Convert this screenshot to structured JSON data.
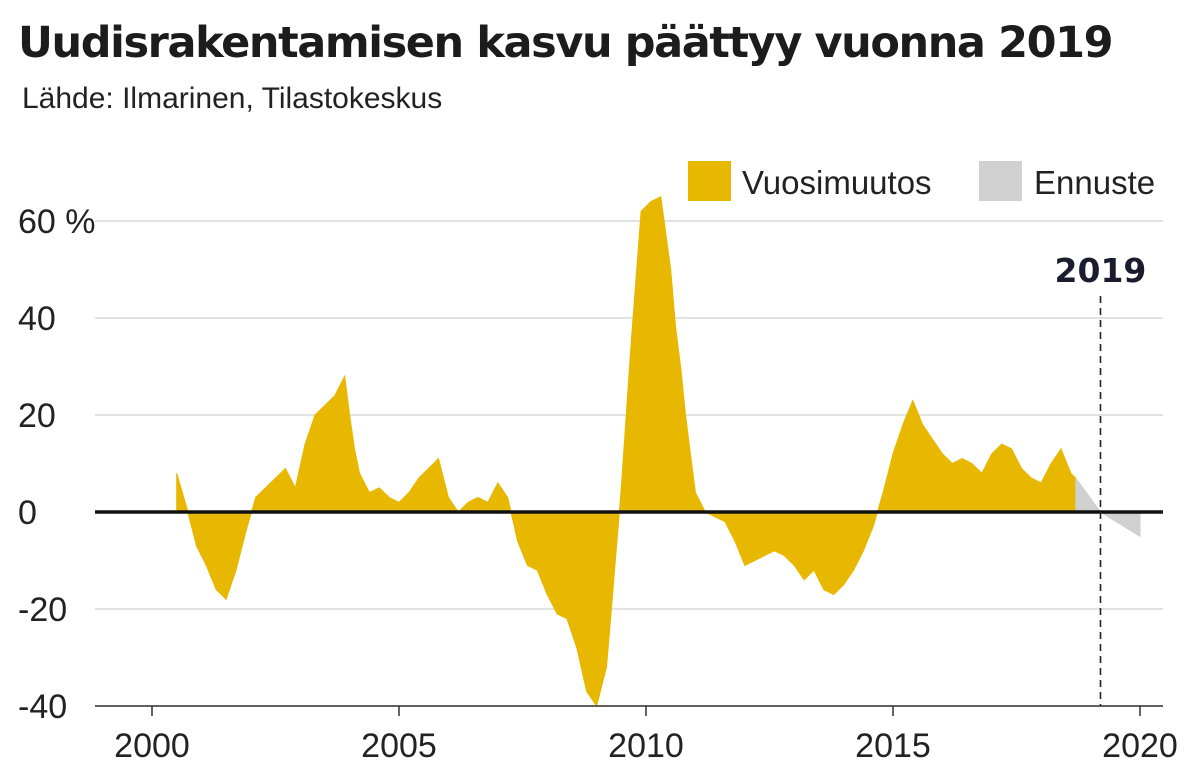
{
  "title": "Uudisrakentamisen kasvu päättyy vuonna 2019",
  "subtitle": "Lähde: Ilmarinen, Tilastokeskus",
  "colors": {
    "actual": "#E8B800",
    "forecast": "#D0D0D0",
    "grid": "#D9D9D9",
    "zero_line": "#111111",
    "marker_line": "#222222"
  },
  "chart_data": {
    "type": "area",
    "title": "Uudisrakentamisen kasvu päättyy vuonna 2019",
    "subtitle": "Lähde: Ilmarinen, Tilastokeskus",
    "xlabel": "",
    "ylabel": "",
    "xlim": [
      1999.0,
      2020.6
    ],
    "ylim": [
      -40,
      70
    ],
    "x_ticks": [
      2000,
      2005,
      2010,
      2015,
      2020
    ],
    "x_tick_labels": [
      "2000",
      "2005",
      "2010",
      "2015",
      "2020"
    ],
    "y_ticks": [
      -40,
      -20,
      0,
      20,
      40,
      60
    ],
    "y_tick_labels": [
      "-40",
      "-20",
      "0",
      "20",
      "40",
      "60 %"
    ],
    "grid": true,
    "legend_position": "top-right",
    "marker": {
      "x": 2019.2,
      "label": "2019"
    },
    "series": [
      {
        "name": "Vuosimuutos",
        "x": [
          2000.5,
          2000.7,
          2000.9,
          2001.1,
          2001.3,
          2001.5,
          2001.7,
          2001.9,
          2002.1,
          2002.3,
          2002.5,
          2002.7,
          2002.9,
          2003.1,
          2003.3,
          2003.5,
          2003.7,
          2003.9,
          2004.0,
          2004.1,
          2004.2,
          2004.4,
          2004.6,
          2004.8,
          2005.0,
          2005.2,
          2005.4,
          2005.6,
          2005.8,
          2006.0,
          2006.2,
          2006.4,
          2006.6,
          2006.8,
          2007.0,
          2007.2,
          2007.4,
          2007.6,
          2007.8,
          2008.0,
          2008.2,
          2008.4,
          2008.6,
          2008.8,
          2009.0,
          2009.2,
          2009.3,
          2009.5,
          2009.7,
          2009.9,
          2010.1,
          2010.3,
          2010.5,
          2010.6,
          2010.7,
          2010.8,
          2011.0,
          2011.2,
          2011.4,
          2011.6,
          2011.8,
          2012.0,
          2012.2,
          2012.4,
          2012.6,
          2012.8,
          2013.0,
          2013.2,
          2013.4,
          2013.6,
          2013.8,
          2014.0,
          2014.2,
          2014.4,
          2014.6,
          2014.8,
          2015.0,
          2015.2,
          2015.4,
          2015.6,
          2015.8,
          2016.0,
          2016.2,
          2016.4,
          2016.6,
          2016.8,
          2017.0,
          2017.2,
          2017.4,
          2017.6,
          2017.8,
          2018.0,
          2018.2,
          2018.4,
          2018.6,
          2018.7
        ],
        "values": [
          8,
          1,
          -7,
          -11,
          -16,
          -18,
          -12,
          -4,
          3,
          5,
          7,
          9,
          5,
          14,
          20,
          22,
          24,
          28,
          20,
          13,
          8,
          4,
          5,
          3,
          2,
          4,
          7,
          9,
          11,
          3,
          0,
          2,
          3,
          2,
          6,
          3,
          -6,
          -11,
          -12,
          -17,
          -21,
          -22,
          -28,
          -37,
          -40,
          -32,
          -20,
          5,
          35,
          62,
          64,
          65,
          50,
          38,
          30,
          20,
          4,
          0,
          -1,
          -2,
          -6,
          -11,
          -10,
          -9,
          -8,
          -9,
          -11,
          -14,
          -12,
          -16,
          -17,
          -15,
          -12,
          -8,
          -3,
          4,
          12,
          18,
          23,
          18,
          15,
          12,
          10,
          11,
          10,
          8,
          12,
          14,
          13,
          9,
          7,
          6,
          10,
          13,
          8,
          7
        ],
        "color": "#E8B800"
      },
      {
        "name": "Ennuste",
        "x": [
          2018.7,
          2019.2,
          2020.0
        ],
        "values": [
          7,
          0,
          -5
        ],
        "color": "#D0D0D0"
      }
    ]
  }
}
